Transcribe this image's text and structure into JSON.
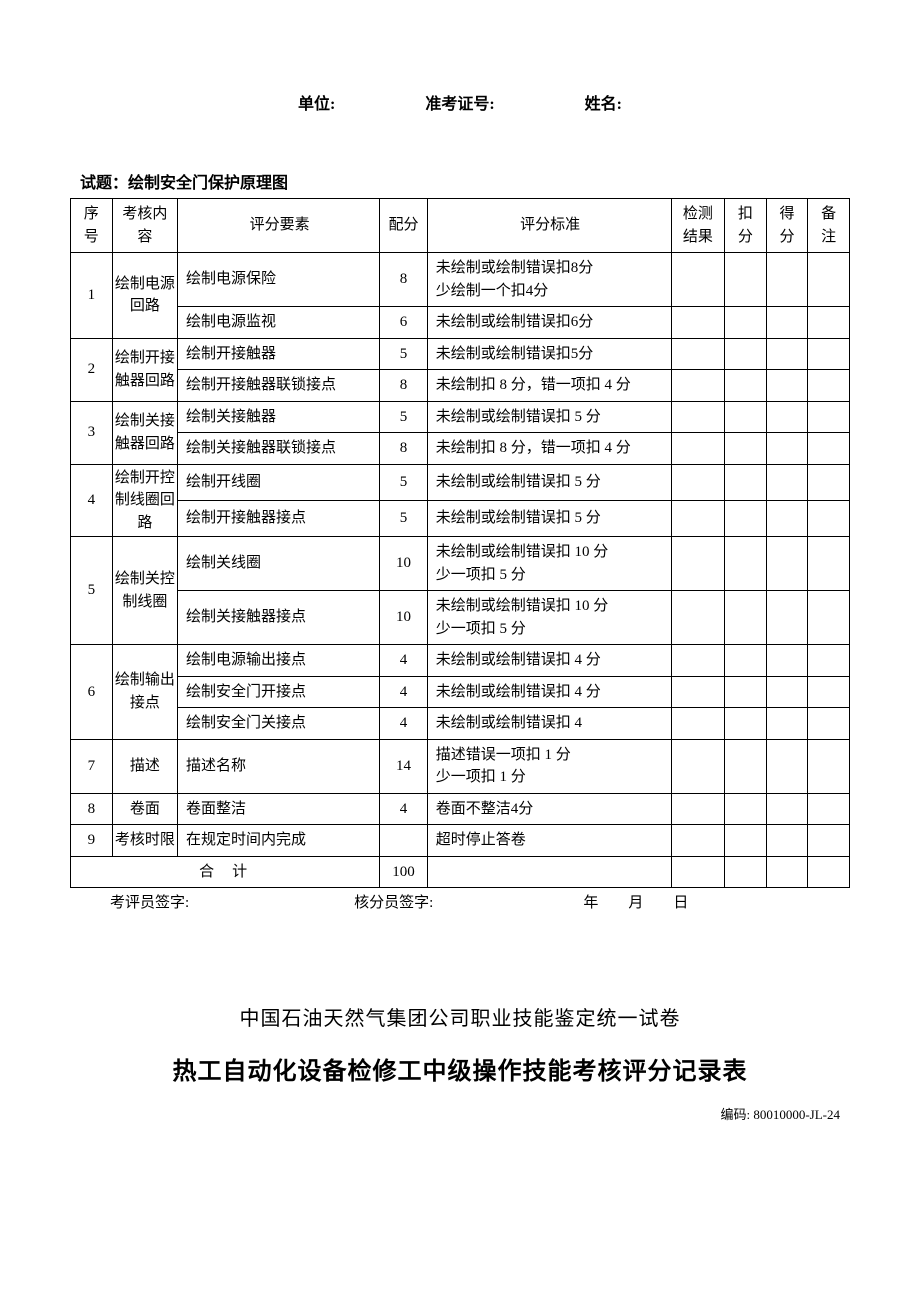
{
  "header": {
    "unit_label": "单位:",
    "exam_no_label": "准考证号:",
    "name_label": "姓名:"
  },
  "question_title": "试题：绘制安全门保护原理图",
  "columns": {
    "seq": "序号",
    "category": "考核内容",
    "element": "评分要素",
    "score": "配分",
    "standard": "评分标准",
    "result": "检测结果",
    "deduction": "扣分",
    "got": "得分",
    "note": "备注"
  },
  "rows": [
    {
      "seq": "1",
      "category": "绘制电源回路",
      "subs": [
        {
          "element": "绘制电源保险",
          "score": "8",
          "standard": "未绘制或绘制错误扣8分\n少绘制一个扣4分"
        },
        {
          "element": "绘制电源监视",
          "score": "6",
          "standard": "未绘制或绘制错误扣6分"
        }
      ]
    },
    {
      "seq": "2",
      "category": "绘制开接触器回路",
      "subs": [
        {
          "element": "绘制开接触器",
          "score": "5",
          "standard": "未绘制或绘制错误扣5分"
        },
        {
          "element": "绘制开接触器联锁接点",
          "score": "8",
          "standard": "未绘制扣 8 分，错一项扣 4 分"
        }
      ]
    },
    {
      "seq": "3",
      "category": "绘制关接触器回路",
      "subs": [
        {
          "element": "绘制关接触器",
          "score": "5",
          "standard": "未绘制或绘制错误扣 5 分"
        },
        {
          "element": "绘制关接触器联锁接点",
          "score": "8",
          "standard": "未绘制扣 8 分，错一项扣 4 分"
        }
      ]
    },
    {
      "seq": "4",
      "category": "绘制开控制线圈回路",
      "subs": [
        {
          "element": "绘制开线圈",
          "score": "5",
          "standard": "未绘制或绘制错误扣 5 分"
        },
        {
          "element": "绘制开接触器接点",
          "score": "5",
          "standard": "未绘制或绘制错误扣 5 分"
        }
      ]
    },
    {
      "seq": "5",
      "category": "绘制关控制线圈",
      "subs": [
        {
          "element": "绘制关线圈",
          "score": "10",
          "standard": "未绘制或绘制错误扣 10 分\n少一项扣 5 分"
        },
        {
          "element": "绘制关接触器接点",
          "score": "10",
          "standard": "未绘制或绘制错误扣 10 分\n少一项扣 5 分"
        }
      ]
    },
    {
      "seq": "6",
      "category": "绘制输出接点",
      "subs": [
        {
          "element": "绘制电源输出接点",
          "score": "4",
          "standard": "未绘制或绘制错误扣 4 分"
        },
        {
          "element": "绘制安全门开接点",
          "score": "4",
          "standard": "未绘制或绘制错误扣 4 分"
        },
        {
          "element": "绘制安全门关接点",
          "score": "4",
          "standard": "未绘制或绘制错误扣 4"
        }
      ]
    },
    {
      "seq": "7",
      "category": "描述",
      "subs": [
        {
          "element": "描述名称",
          "score": "14",
          "standard": "描述错误一项扣 1 分\n少一项扣 1 分"
        }
      ]
    },
    {
      "seq": "8",
      "category": "卷面",
      "subs": [
        {
          "element": "卷面整洁",
          "score": "4",
          "standard": "卷面不整洁4分"
        }
      ]
    },
    {
      "seq": "9",
      "category": "考核时限",
      "subs": [
        {
          "element": "在规定时间内完成",
          "score": "",
          "standard": "超时停止答卷"
        }
      ]
    }
  ],
  "total": {
    "label": "合计",
    "score": "100"
  },
  "signatures": {
    "examiner": "考评员签字:",
    "checker": "核分员签字:",
    "date": "年　　月　　日"
  },
  "footer": {
    "org": "中国石油天然气集团公司职业技能鉴定统一试卷",
    "title": "热工自动化设备检修工中级操作技能考核评分记录表",
    "code_label": "编码:",
    "code": "80010000-JL-24"
  }
}
